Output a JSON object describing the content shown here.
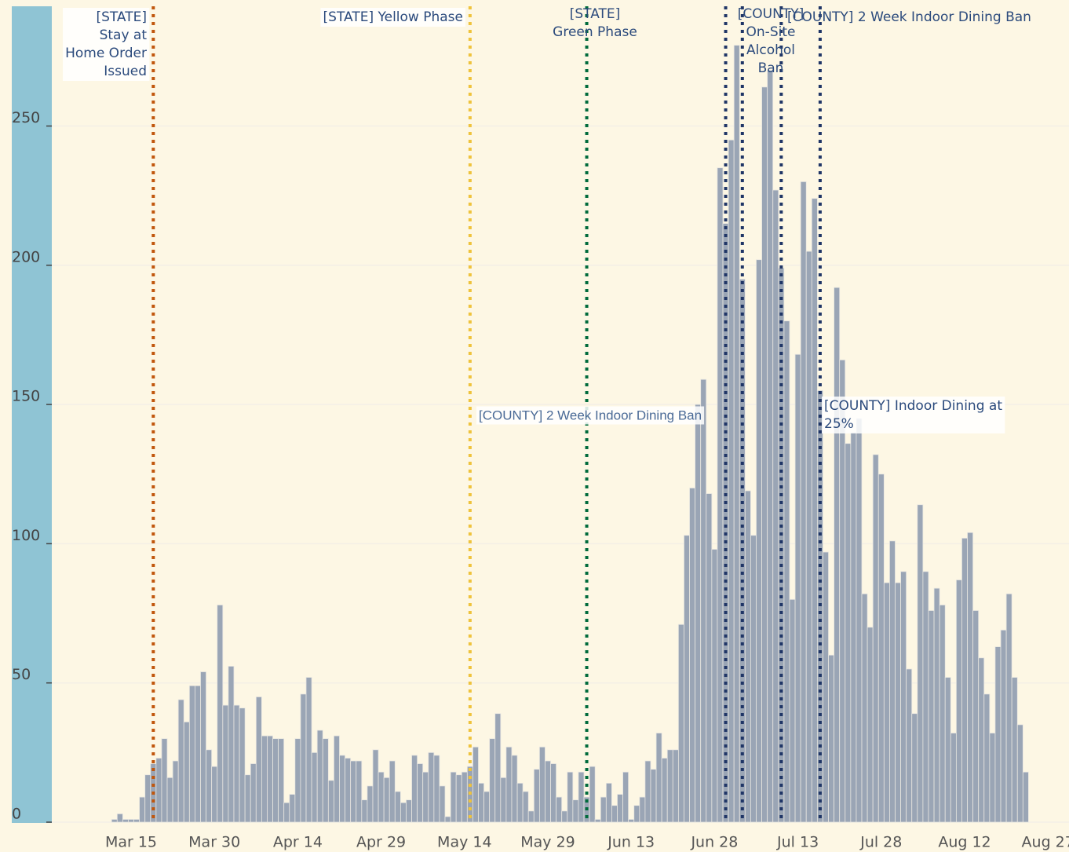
{
  "chart_data": {
    "type": "bar",
    "categories": [
      null,
      null,
      null,
      "Mar 15",
      null,
      null,
      null,
      null,
      null,
      null,
      null,
      null,
      null,
      null,
      null,
      null,
      null,
      null,
      "Mar 30",
      null,
      null,
      null,
      null,
      null,
      null,
      null,
      null,
      null,
      null,
      null,
      null,
      null,
      null,
      "Apr 14",
      null,
      null,
      null,
      null,
      null,
      null,
      null,
      null,
      null,
      null,
      null,
      null,
      null,
      null,
      "Apr 29",
      null,
      null,
      null,
      null,
      null,
      null,
      null,
      null,
      null,
      null,
      null,
      null,
      null,
      null,
      "May 14",
      null,
      null,
      null,
      null,
      null,
      null,
      null,
      null,
      null,
      null,
      null,
      null,
      null,
      null,
      "May 29",
      null,
      null,
      null,
      null,
      null,
      null,
      null,
      null,
      null,
      null,
      null,
      null,
      null,
      null,
      "Jun 13",
      null,
      null,
      null,
      null,
      null,
      null,
      null,
      null,
      null,
      null,
      null,
      null,
      null,
      null,
      "Jun 28",
      null,
      null,
      null,
      null,
      null,
      null,
      null,
      null,
      null,
      null,
      null,
      null,
      null,
      null,
      "Jul 13",
      null,
      null,
      null,
      null,
      null,
      null,
      null,
      null,
      null,
      null,
      null,
      null,
      null,
      null,
      "Jul 28",
      null,
      null,
      null,
      null,
      null,
      null,
      null,
      null,
      null,
      null,
      null,
      null,
      null,
      null,
      "Aug 12",
      null,
      null,
      null,
      null,
      null,
      null,
      null,
      null,
      null,
      null,
      null,
      null,
      null,
      null,
      "Aug 27"
    ],
    "values": [
      1,
      3,
      1,
      1,
      1,
      9,
      17,
      21,
      23,
      30,
      16,
      22,
      44,
      36,
      49,
      49,
      54,
      26,
      20,
      78,
      42,
      56,
      42,
      41,
      17,
      21,
      45,
      31,
      31,
      30,
      30,
      7,
      10,
      30,
      46,
      52,
      25,
      33,
      30,
      15,
      31,
      24,
      23,
      22,
      22,
      8,
      13,
      26,
      18,
      16,
      22,
      11,
      7,
      8,
      24,
      21,
      18,
      25,
      24,
      13,
      2,
      18,
      17,
      18,
      20,
      27,
      14,
      11,
      30,
      39,
      16,
      27,
      24,
      14,
      11,
      4,
      19,
      27,
      22,
      21,
      9,
      4,
      18,
      8,
      18,
      9,
      20,
      1,
      9,
      14,
      6,
      10,
      18,
      1,
      6,
      9,
      22,
      19,
      32,
      23,
      26,
      26,
      71,
      103,
      120,
      150,
      159,
      118,
      98,
      235,
      215,
      245,
      279,
      195,
      119,
      103,
      202,
      264,
      270,
      227,
      199,
      180,
      80,
      168,
      230,
      205,
      224,
      155,
      97,
      60,
      192,
      166,
      136,
      140,
      145,
      82,
      70,
      132,
      125,
      86,
      101,
      86,
      90,
      55,
      39,
      114,
      90,
      76,
      84,
      78,
      52,
      32,
      87,
      102,
      104,
      76,
      59,
      46,
      32,
      63,
      69,
      82,
      52,
      35,
      18,
      null,
      null,
      null,
      null
    ],
    "color": "#9aa5b5",
    "ylim": [
      0,
      293
    ],
    "yticks": [
      0,
      50,
      100,
      150,
      200,
      250
    ],
    "grid": true,
    "annotations": [
      {
        "text": [
          "[STATE]",
          "Stay at",
          "Home Order",
          "Issued"
        ],
        "at": 7,
        "color": "#c0560c"
      },
      {
        "text": [
          "[STATE] Yellow Phase"
        ],
        "at": 64,
        "color": "#efc33c"
      },
      {
        "text": [
          "[STATE]",
          "Green Phase"
        ],
        "at": 85,
        "color": "#006b3c"
      },
      {
        "text": [
          "[COUNTY] 2 Week Indoor Dining Ban"
        ],
        "at": 110,
        "color": "#1f3566"
      },
      {
        "text": [
          "[COUNTY]",
          "On-Site",
          "Alcohol",
          "Ban"
        ],
        "at": 113,
        "color": "#1f3566"
      },
      {
        "text": [
          "[COUNTY] Indoor Dining at",
          "25%"
        ],
        "at": 120,
        "color": "#1f3566"
      },
      {
        "text": [
          "[COUNTY] 2 Week Indoor Dining Ban"
        ],
        "at": 127,
        "color": "#1f3566"
      }
    ]
  }
}
